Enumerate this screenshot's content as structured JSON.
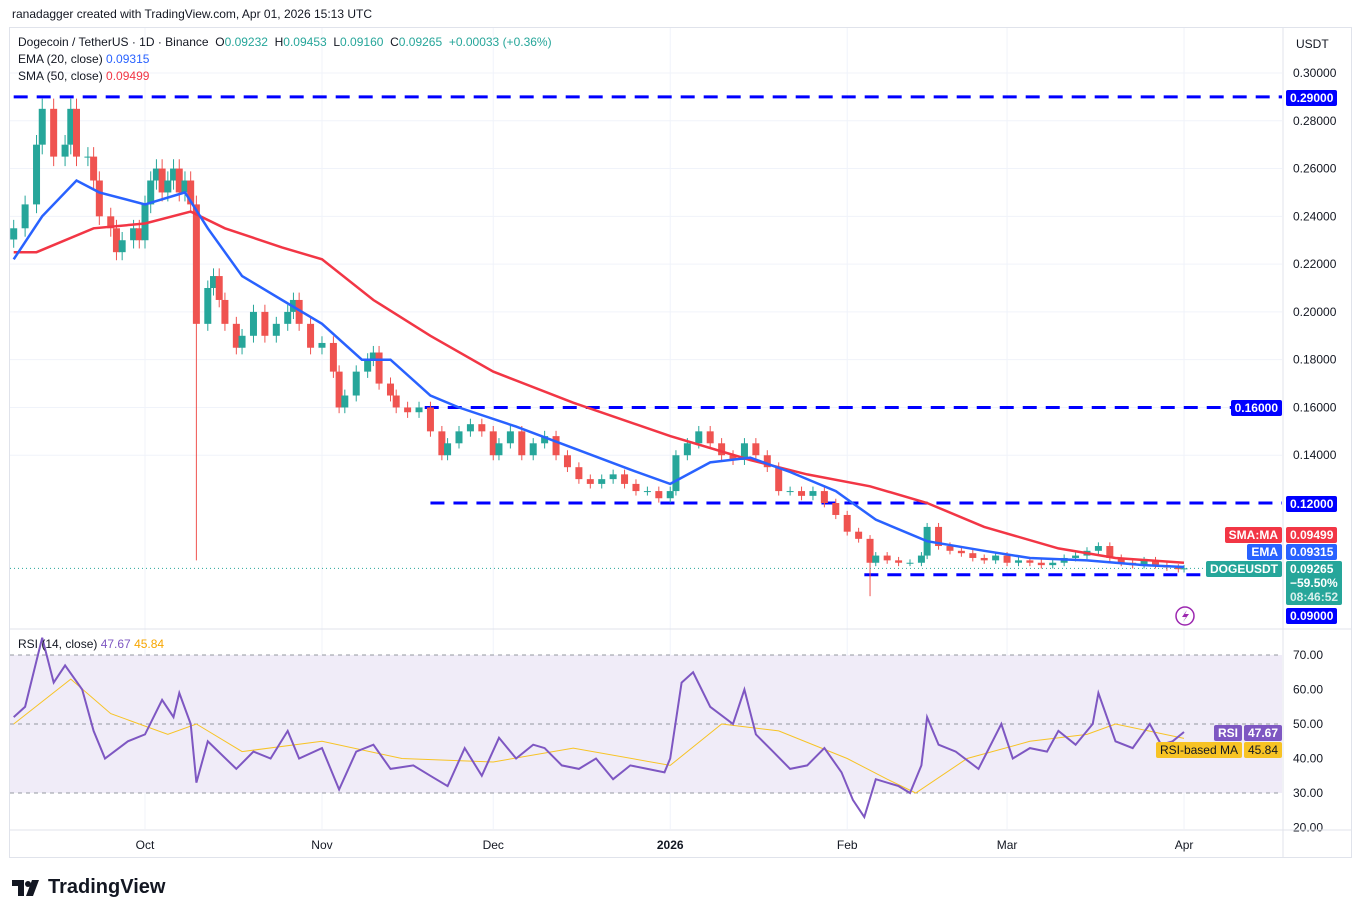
{
  "credit": "ranadagger created with TradingView.com, Apr 01, 2026 15:13 UTC",
  "header": {
    "symbol": "Dogecoin / TetherUS · 1D · Binance",
    "o_label": "O",
    "o": "0.09232",
    "h_label": "H",
    "h": "0.09453",
    "l_label": "L",
    "l": "0.09160",
    "c_label": "C",
    "c": "0.09265",
    "change": "+0.00033 (+0.36%)",
    "ema_label": "EMA (20, close)",
    "ema": "0.09315",
    "sma_label": "SMA (50, close)",
    "sma": "0.09499"
  },
  "currency": "USDT",
  "badges": {
    "sma_name": "SMA:MA",
    "sma": "0.09499",
    "ema_name": "EMA",
    "ema": "0.09315",
    "sym_name": "DOGEUSDT",
    "price": "0.09265",
    "change_pct": "−59.50%",
    "countdown": "08:46:52",
    "level_090": "0.09000",
    "level_120": "0.12000",
    "level_160": "0.16000",
    "level_290": "0.29000",
    "rsi_name": "RSI",
    "rsi": "47.67",
    "rsima_name": "RSI-based MA",
    "rsima": "45.84"
  },
  "rsi_legend": {
    "label": "RSI (14, close)",
    "rsi": "47.67",
    "ma": "45.84"
  },
  "logo": "TradingView",
  "colors": {
    "up": "#26a69a",
    "down": "#ef5350",
    "ema": "#2962ff",
    "sma": "#f23645",
    "rsi": "#7e57c2",
    "rsi_ma": "#f7c325",
    "level": "#0000ff",
    "rsi_band": "#f0ecf8"
  },
  "chart_data": {
    "type": "candlestick",
    "price_axis": {
      "ticks": [
        "0.30000",
        "0.28000",
        "0.26000",
        "0.24000",
        "0.22000",
        "0.20000",
        "0.18000",
        "0.16000",
        "0.14000"
      ],
      "tick_values": [
        0.3,
        0.28,
        0.26,
        0.24,
        0.22,
        0.2,
        0.18,
        0.16,
        0.14
      ],
      "range": [
        0.078,
        0.318
      ]
    },
    "time_axis": {
      "labels": [
        "Oct",
        "Nov",
        "Dec",
        "2026",
        "Feb",
        "Mar",
        "Apr"
      ],
      "dates": [
        "2025-10-01",
        "2025-11-01",
        "2025-12-01",
        "2026-01-01",
        "2026-02-01",
        "2026-03-01",
        "2026-04-01"
      ]
    },
    "closes": [
      [
        "2025-09-08",
        0.235
      ],
      [
        "2025-09-10",
        0.245
      ],
      [
        "2025-09-12",
        0.27
      ],
      [
        "2025-09-13",
        0.285
      ],
      [
        "2025-09-15",
        0.265
      ],
      [
        "2025-09-17",
        0.27
      ],
      [
        "2025-09-18",
        0.285
      ],
      [
        "2025-09-19",
        0.265
      ],
      [
        "2025-09-21",
        0.265
      ],
      [
        "2025-09-22",
        0.255
      ],
      [
        "2025-09-23",
        0.24
      ],
      [
        "2025-09-25",
        0.235
      ],
      [
        "2025-09-26",
        0.225
      ],
      [
        "2025-09-27",
        0.23
      ],
      [
        "2025-09-29",
        0.235
      ],
      [
        "2025-09-30",
        0.23
      ],
      [
        "2025-10-01",
        0.245
      ],
      [
        "2025-10-02",
        0.255
      ],
      [
        "2025-10-03",
        0.26
      ],
      [
        "2025-10-04",
        0.25
      ],
      [
        "2025-10-05",
        0.255
      ],
      [
        "2025-10-06",
        0.26
      ],
      [
        "2025-10-07",
        0.25
      ],
      [
        "2025-10-08",
        0.255
      ],
      [
        "2025-10-09",
        0.245
      ],
      [
        "2025-10-10",
        0.195
      ],
      [
        "2025-10-12",
        0.21
      ],
      [
        "2025-10-13",
        0.215
      ],
      [
        "2025-10-14",
        0.205
      ],
      [
        "2025-10-15",
        0.195
      ],
      [
        "2025-10-17",
        0.185
      ],
      [
        "2025-10-18",
        0.19
      ],
      [
        "2025-10-20",
        0.2
      ],
      [
        "2025-10-22",
        0.19
      ],
      [
        "2025-10-24",
        0.195
      ],
      [
        "2025-10-26",
        0.2
      ],
      [
        "2025-10-27",
        0.205
      ],
      [
        "2025-10-28",
        0.195
      ],
      [
        "2025-10-30",
        0.185
      ],
      [
        "2025-11-01",
        0.187
      ],
      [
        "2025-11-03",
        0.175
      ],
      [
        "2025-11-04",
        0.16
      ],
      [
        "2025-11-05",
        0.165
      ],
      [
        "2025-11-07",
        0.175
      ],
      [
        "2025-11-09",
        0.18
      ],
      [
        "2025-11-10",
        0.183
      ],
      [
        "2025-11-11",
        0.17
      ],
      [
        "2025-11-13",
        0.165
      ],
      [
        "2025-11-14",
        0.16
      ],
      [
        "2025-11-16",
        0.158
      ],
      [
        "2025-11-18",
        0.16
      ],
      [
        "2025-11-20",
        0.15
      ],
      [
        "2025-11-22",
        0.14
      ],
      [
        "2025-11-23",
        0.145
      ],
      [
        "2025-11-25",
        0.15
      ],
      [
        "2025-11-27",
        0.153
      ],
      [
        "2025-11-29",
        0.15
      ],
      [
        "2025-12-01",
        0.14
      ],
      [
        "2025-12-02",
        0.145
      ],
      [
        "2025-12-04",
        0.15
      ],
      [
        "2025-12-06",
        0.14
      ],
      [
        "2025-12-08",
        0.145
      ],
      [
        "2025-12-10",
        0.148
      ],
      [
        "2025-12-12",
        0.14
      ],
      [
        "2025-12-14",
        0.135
      ],
      [
        "2025-12-16",
        0.13
      ],
      [
        "2025-12-18",
        0.128
      ],
      [
        "2025-12-20",
        0.13
      ],
      [
        "2025-12-22",
        0.132
      ],
      [
        "2025-12-24",
        0.128
      ],
      [
        "2025-12-26",
        0.125
      ],
      [
        "2025-12-28",
        0.125
      ],
      [
        "2025-12-30",
        0.122
      ],
      [
        "2026-01-01",
        0.125
      ],
      [
        "2026-01-02",
        0.14
      ],
      [
        "2026-01-04",
        0.145
      ],
      [
        "2026-01-06",
        0.15
      ],
      [
        "2026-01-08",
        0.145
      ],
      [
        "2026-01-10",
        0.14
      ],
      [
        "2026-01-12",
        0.138
      ],
      [
        "2026-01-14",
        0.145
      ],
      [
        "2026-01-16",
        0.14
      ],
      [
        "2026-01-18",
        0.135
      ],
      [
        "2026-01-20",
        0.125
      ],
      [
        "2026-01-22",
        0.125
      ],
      [
        "2026-01-24",
        0.123
      ],
      [
        "2026-01-26",
        0.125
      ],
      [
        "2026-01-28",
        0.12
      ],
      [
        "2026-01-30",
        0.115
      ],
      [
        "2026-02-01",
        0.108
      ],
      [
        "2026-02-03",
        0.105
      ],
      [
        "2026-02-05",
        0.095
      ],
      [
        "2026-02-06",
        0.098
      ],
      [
        "2026-02-08",
        0.096
      ],
      [
        "2026-02-10",
        0.095
      ],
      [
        "2026-02-12",
        0.095
      ],
      [
        "2026-02-14",
        0.098
      ],
      [
        "2026-02-15",
        0.11
      ],
      [
        "2026-02-17",
        0.102
      ],
      [
        "2026-02-19",
        0.1
      ],
      [
        "2026-02-21",
        0.099
      ],
      [
        "2026-02-23",
        0.097
      ],
      [
        "2026-02-25",
        0.096
      ],
      [
        "2026-02-27",
        0.098
      ],
      [
        "2026-03-01",
        0.095
      ],
      [
        "2026-03-03",
        0.096
      ],
      [
        "2026-03-05",
        0.095
      ],
      [
        "2026-03-07",
        0.094
      ],
      [
        "2026-03-09",
        0.095
      ],
      [
        "2026-03-11",
        0.097
      ],
      [
        "2026-03-13",
        0.098
      ],
      [
        "2026-03-15",
        0.1
      ],
      [
        "2026-03-17",
        0.102
      ],
      [
        "2026-03-19",
        0.097
      ],
      [
        "2026-03-21",
        0.095
      ],
      [
        "2026-03-23",
        0.094
      ],
      [
        "2026-03-25",
        0.096
      ],
      [
        "2026-03-27",
        0.094
      ],
      [
        "2026-03-29",
        0.093
      ],
      [
        "2026-03-31",
        0.0923
      ],
      [
        "2026-04-01",
        0.09265
      ]
    ],
    "wick_lows": [
      [
        "2025-10-10",
        0.096
      ],
      [
        "2026-02-05",
        0.081
      ]
    ],
    "ema20": [
      [
        "2025-09-08",
        0.222
      ],
      [
        "2025-09-13",
        0.24
      ],
      [
        "2025-09-19",
        0.255
      ],
      [
        "2025-09-23",
        0.25
      ],
      [
        "2025-10-01",
        0.245
      ],
      [
        "2025-10-08",
        0.25
      ],
      [
        "2025-10-12",
        0.235
      ],
      [
        "2025-10-18",
        0.215
      ],
      [
        "2025-10-25",
        0.205
      ],
      [
        "2025-11-01",
        0.195
      ],
      [
        "2025-11-08",
        0.18
      ],
      [
        "2025-11-13",
        0.18
      ],
      [
        "2025-11-20",
        0.165
      ],
      [
        "2025-11-25",
        0.16
      ],
      [
        "2025-12-05",
        0.152
      ],
      [
        "2025-12-15",
        0.143
      ],
      [
        "2025-12-25",
        0.134
      ],
      [
        "2026-01-01",
        0.128
      ],
      [
        "2026-01-08",
        0.137
      ],
      [
        "2026-01-15",
        0.139
      ],
      [
        "2026-01-22",
        0.133
      ],
      [
        "2026-01-30",
        0.125
      ],
      [
        "2026-02-06",
        0.113
      ],
      [
        "2026-02-15",
        0.104
      ],
      [
        "2026-02-25",
        0.1
      ],
      [
        "2026-03-05",
        0.097
      ],
      [
        "2026-03-15",
        0.096
      ],
      [
        "2026-03-25",
        0.094
      ],
      [
        "2026-04-01",
        0.0932
      ]
    ],
    "sma50": [
      [
        "2025-09-08",
        0.225
      ],
      [
        "2025-09-12",
        0.225
      ],
      [
        "2025-09-22",
        0.235
      ],
      [
        "2025-10-01",
        0.237
      ],
      [
        "2025-10-09",
        0.242
      ],
      [
        "2025-10-15",
        0.235
      ],
      [
        "2025-10-25",
        0.227
      ],
      [
        "2025-11-01",
        0.222
      ],
      [
        "2025-11-10",
        0.205
      ],
      [
        "2025-11-20",
        0.19
      ],
      [
        "2025-12-01",
        0.175
      ],
      [
        "2025-12-15",
        0.162
      ],
      [
        "2026-01-01",
        0.148
      ],
      [
        "2026-01-15",
        0.138
      ],
      [
        "2026-01-25",
        0.132
      ],
      [
        "2026-02-05",
        0.127
      ],
      [
        "2026-02-15",
        0.12
      ],
      [
        "2026-02-25",
        0.11
      ],
      [
        "2026-03-10",
        0.101
      ],
      [
        "2026-03-20",
        0.097
      ],
      [
        "2026-04-01",
        0.095
      ]
    ],
    "levels": [
      {
        "price": 0.29,
        "from": "2025-09-08",
        "to": "2026-05-08"
      },
      {
        "price": 0.16,
        "from": "2025-11-19",
        "to": "2026-05-08"
      },
      {
        "price": 0.12,
        "from": "2025-11-20",
        "to": "2026-05-08"
      },
      {
        "price": 0.09,
        "from": "2026-02-04",
        "to": "2026-04-05"
      }
    ],
    "rsi_axis": {
      "ticks": [
        "70.00",
        "60.00",
        "50.00",
        "40.00",
        "30.00",
        "20.00"
      ],
      "tick_values": [
        70,
        60,
        50,
        40,
        30,
        20
      ],
      "band": [
        30,
        70
      ]
    },
    "rsi": [
      [
        "2025-09-08",
        52
      ],
      [
        "2025-09-10",
        55
      ],
      [
        "2025-09-13",
        75
      ],
      [
        "2025-09-15",
        62
      ],
      [
        "2025-09-17",
        67
      ],
      [
        "2025-09-20",
        60
      ],
      [
        "2025-09-22",
        48
      ],
      [
        "2025-09-24",
        40
      ],
      [
        "2025-09-28",
        45
      ],
      [
        "2025-10-01",
        47
      ],
      [
        "2025-10-04",
        57
      ],
      [
        "2025-10-06",
        52
      ],
      [
        "2025-10-07",
        59
      ],
      [
        "2025-10-09",
        50
      ],
      [
        "2025-10-10",
        33
      ],
      [
        "2025-10-12",
        45
      ],
      [
        "2025-10-17",
        37
      ],
      [
        "2025-10-20",
        42
      ],
      [
        "2025-10-23",
        40
      ],
      [
        "2025-10-26",
        48
      ],
      [
        "2025-10-28",
        40
      ],
      [
        "2025-11-01",
        43
      ],
      [
        "2025-11-04",
        31
      ],
      [
        "2025-11-07",
        42
      ],
      [
        "2025-11-10",
        44
      ],
      [
        "2025-11-13",
        37
      ],
      [
        "2025-11-17",
        38
      ],
      [
        "2025-11-20",
        35
      ],
      [
        "2025-11-23",
        32
      ],
      [
        "2025-11-26",
        43
      ],
      [
        "2025-11-29",
        35
      ],
      [
        "2025-12-02",
        46
      ],
      [
        "2025-12-05",
        40
      ],
      [
        "2025-12-08",
        44
      ],
      [
        "2025-12-10",
        43
      ],
      [
        "2025-12-13",
        38
      ],
      [
        "2025-12-16",
        37
      ],
      [
        "2025-12-19",
        40
      ],
      [
        "2025-12-22",
        34
      ],
      [
        "2025-12-25",
        38
      ],
      [
        "2025-12-28",
        37
      ],
      [
        "2025-12-31",
        36
      ],
      [
        "2026-01-01",
        40
      ],
      [
        "2026-01-03",
        62
      ],
      [
        "2026-01-05",
        65
      ],
      [
        "2026-01-08",
        55
      ],
      [
        "2026-01-12",
        50
      ],
      [
        "2026-01-14",
        60
      ],
      [
        "2026-01-16",
        47
      ],
      [
        "2026-01-19",
        42
      ],
      [
        "2026-01-22",
        37
      ],
      [
        "2026-01-25",
        38
      ],
      [
        "2026-01-28",
        43
      ],
      [
        "2026-01-31",
        36
      ],
      [
        "2026-02-02",
        28
      ],
      [
        "2026-02-04",
        23
      ],
      [
        "2026-02-06",
        34
      ],
      [
        "2026-02-10",
        32
      ],
      [
        "2026-02-12",
        30
      ],
      [
        "2026-02-14",
        38
      ],
      [
        "2026-02-15",
        52
      ],
      [
        "2026-02-17",
        44
      ],
      [
        "2026-02-20",
        42
      ],
      [
        "2026-02-24",
        37
      ],
      [
        "2026-02-28",
        50
      ],
      [
        "2026-03-02",
        40
      ],
      [
        "2026-03-05",
        43
      ],
      [
        "2026-03-08",
        42
      ],
      [
        "2026-03-10",
        48
      ],
      [
        "2026-03-13",
        44
      ],
      [
        "2026-03-16",
        50
      ],
      [
        "2026-03-17",
        59
      ],
      [
        "2026-03-20",
        45
      ],
      [
        "2026-03-23",
        43
      ],
      [
        "2026-03-26",
        50
      ],
      [
        "2026-03-28",
        44
      ],
      [
        "2026-03-30",
        45
      ],
      [
        "2026-04-01",
        47.67
      ]
    ],
    "rsi_ma": [
      [
        "2025-09-08",
        50
      ],
      [
        "2025-09-18",
        63
      ],
      [
        "2025-09-25",
        53
      ],
      [
        "2025-10-05",
        47
      ],
      [
        "2025-10-10",
        50
      ],
      [
        "2025-10-18",
        42
      ],
      [
        "2025-11-01",
        45
      ],
      [
        "2025-11-15",
        40
      ],
      [
        "2025-12-01",
        39
      ],
      [
        "2025-12-15",
        43
      ],
      [
        "2026-01-01",
        38
      ],
      [
        "2026-01-10",
        50
      ],
      [
        "2026-01-20",
        48
      ],
      [
        "2026-02-01",
        40
      ],
      [
        "2026-02-08",
        34
      ],
      [
        "2026-02-13",
        30
      ],
      [
        "2026-02-22",
        40
      ],
      [
        "2026-03-05",
        45
      ],
      [
        "2026-03-15",
        47
      ],
      [
        "2026-03-20",
        50
      ],
      [
        "2026-04-01",
        45.84
      ]
    ]
  }
}
